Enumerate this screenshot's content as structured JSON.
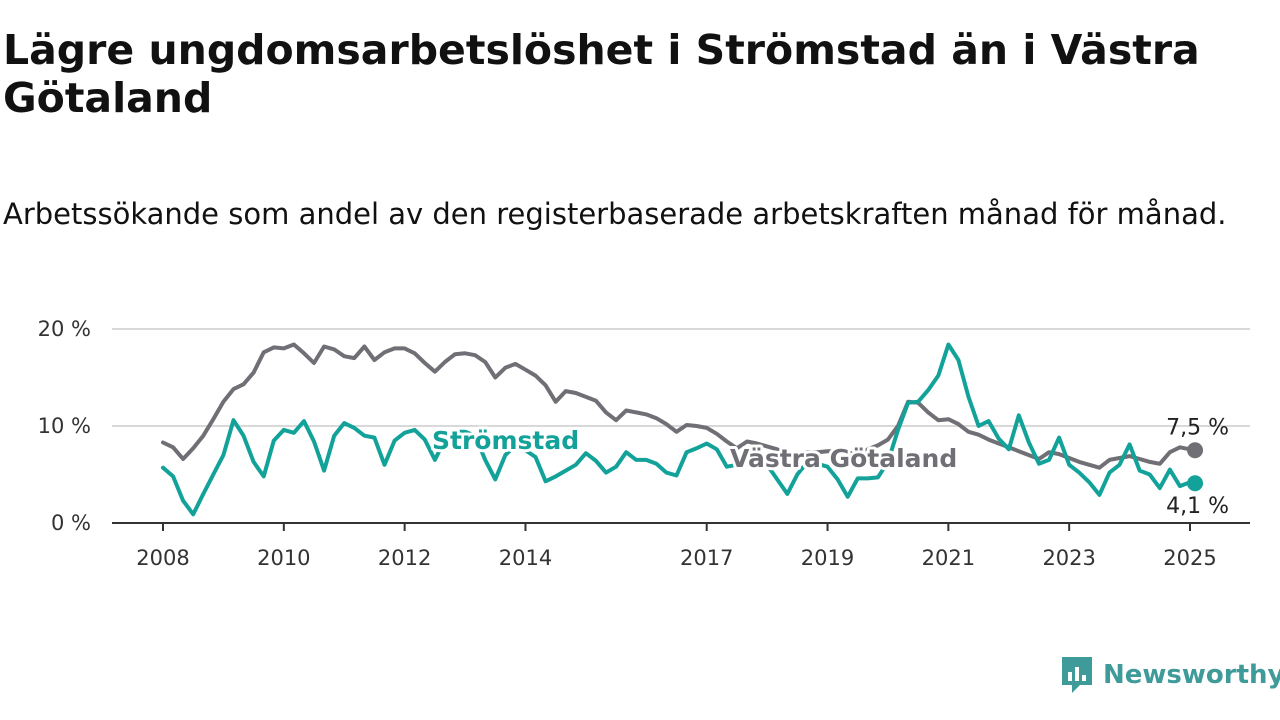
{
  "title": "Lägre ungdomsarbetslöshet i Strömstad än i Västra Götaland",
  "subtitle": "Arbetssökande som andel av den registerbaserade arbetskraften månad för månad.",
  "brand": {
    "name": "Newsworthy",
    "icon": "newsworthy-logo-icon",
    "color": "#3f9a9a"
  },
  "chart_data": {
    "type": "line",
    "title": "Lägre ungdomsarbetslöshet i Strömstad än i Västra Götaland",
    "subtitle": "Arbetssökande som andel av den registerbaserade arbetskraften månad för månad.",
    "xlabel": "",
    "ylabel": "",
    "x_ticks": [
      "2008",
      "2010",
      "2012",
      "2014",
      "2017",
      "2019",
      "2021",
      "2023",
      "2025"
    ],
    "y_ticks": [
      "0 %",
      "10 %",
      "20 %"
    ],
    "ylim": [
      0,
      20
    ],
    "xlim": [
      "2008-01",
      "2025-02"
    ],
    "grid": true,
    "series": [
      {
        "name": "Västra Götaland",
        "color": "#6f6f75",
        "end_label": "7,5 %",
        "points": [
          [
            "2008-01",
            8.3
          ],
          [
            "2008-03",
            7.8
          ],
          [
            "2008-05",
            6.6
          ],
          [
            "2008-07",
            7.7
          ],
          [
            "2008-09",
            9.0
          ],
          [
            "2008-11",
            10.7
          ],
          [
            "2009-01",
            12.5
          ],
          [
            "2009-03",
            13.8
          ],
          [
            "2009-05",
            14.3
          ],
          [
            "2009-07",
            15.5
          ],
          [
            "2009-09",
            17.6
          ],
          [
            "2009-11",
            18.1
          ],
          [
            "2010-01",
            18.0
          ],
          [
            "2010-03",
            18.4
          ],
          [
            "2010-05",
            17.5
          ],
          [
            "2010-07",
            16.5
          ],
          [
            "2010-09",
            18.2
          ],
          [
            "2010-11",
            17.9
          ],
          [
            "2011-01",
            17.2
          ],
          [
            "2011-03",
            17.0
          ],
          [
            "2011-05",
            18.2
          ],
          [
            "2011-07",
            16.8
          ],
          [
            "2011-09",
            17.6
          ],
          [
            "2011-11",
            18.0
          ],
          [
            "2012-01",
            18.0
          ],
          [
            "2012-03",
            17.5
          ],
          [
            "2012-05",
            16.5
          ],
          [
            "2012-07",
            15.6
          ],
          [
            "2012-09",
            16.6
          ],
          [
            "2012-11",
            17.4
          ],
          [
            "2013-01",
            17.5
          ],
          [
            "2013-03",
            17.3
          ],
          [
            "2013-05",
            16.6
          ],
          [
            "2013-07",
            15.0
          ],
          [
            "2013-09",
            16.0
          ],
          [
            "2013-11",
            16.4
          ],
          [
            "2014-01",
            15.8
          ],
          [
            "2014-03",
            15.2
          ],
          [
            "2014-05",
            14.2
          ],
          [
            "2014-07",
            12.5
          ],
          [
            "2014-09",
            13.6
          ],
          [
            "2014-11",
            13.4
          ],
          [
            "2015-01",
            13.0
          ],
          [
            "2015-03",
            12.6
          ],
          [
            "2015-05",
            11.4
          ],
          [
            "2015-07",
            10.6
          ],
          [
            "2015-09",
            11.6
          ],
          [
            "2015-11",
            11.4
          ],
          [
            "2016-01",
            11.2
          ],
          [
            "2016-03",
            10.8
          ],
          [
            "2016-05",
            10.2
          ],
          [
            "2016-07",
            9.4
          ],
          [
            "2016-09",
            10.1
          ],
          [
            "2016-11",
            10.0
          ],
          [
            "2017-01",
            9.8
          ],
          [
            "2017-03",
            9.2
          ],
          [
            "2017-05",
            8.4
          ],
          [
            "2017-07",
            7.7
          ],
          [
            "2017-09",
            8.4
          ],
          [
            "2017-11",
            8.2
          ],
          [
            "2018-01",
            7.9
          ],
          [
            "2018-03",
            7.6
          ],
          [
            "2018-05",
            7.1
          ],
          [
            "2018-07",
            6.4
          ],
          [
            "2018-09",
            7.3
          ],
          [
            "2018-11",
            7.3
          ],
          [
            "2019-01",
            7.4
          ],
          [
            "2019-03",
            7.4
          ],
          [
            "2019-05",
            7.3
          ],
          [
            "2019-07",
            7.0
          ],
          [
            "2019-09",
            7.6
          ],
          [
            "2019-11",
            8.0
          ],
          [
            "2020-01",
            8.6
          ],
          [
            "2020-03",
            10.0
          ],
          [
            "2020-05",
            12.5
          ],
          [
            "2020-07",
            12.4
          ],
          [
            "2020-09",
            11.4
          ],
          [
            "2020-11",
            10.6
          ],
          [
            "2021-01",
            10.7
          ],
          [
            "2021-03",
            10.2
          ],
          [
            "2021-05",
            9.4
          ],
          [
            "2021-07",
            9.1
          ],
          [
            "2021-09",
            8.6
          ],
          [
            "2021-11",
            8.2
          ],
          [
            "2022-01",
            7.8
          ],
          [
            "2022-03",
            7.4
          ],
          [
            "2022-05",
            7.0
          ],
          [
            "2022-07",
            6.6
          ],
          [
            "2022-09",
            7.3
          ],
          [
            "2022-11",
            7.1
          ],
          [
            "2023-01",
            6.7
          ],
          [
            "2023-03",
            6.3
          ],
          [
            "2023-05",
            6.0
          ],
          [
            "2023-07",
            5.7
          ],
          [
            "2023-09",
            6.5
          ],
          [
            "2023-11",
            6.7
          ],
          [
            "2024-01",
            6.9
          ],
          [
            "2024-03",
            6.6
          ],
          [
            "2024-05",
            6.3
          ],
          [
            "2024-07",
            6.1
          ],
          [
            "2024-09",
            7.3
          ],
          [
            "2024-11",
            7.8
          ],
          [
            "2025-01",
            7.6
          ],
          [
            "2025-02",
            7.5
          ]
        ]
      },
      {
        "name": "Strömstad",
        "color": "#12a29a",
        "end_label": "4,1 %",
        "points": [
          [
            "2008-01",
            5.7
          ],
          [
            "2008-03",
            4.8
          ],
          [
            "2008-05",
            2.3
          ],
          [
            "2008-07",
            0.9
          ],
          [
            "2008-09",
            3.0
          ],
          [
            "2008-11",
            5.0
          ],
          [
            "2009-01",
            7.0
          ],
          [
            "2009-03",
            10.6
          ],
          [
            "2009-05",
            9.0
          ],
          [
            "2009-07",
            6.3
          ],
          [
            "2009-09",
            4.8
          ],
          [
            "2009-11",
            8.5
          ],
          [
            "2010-01",
            9.6
          ],
          [
            "2010-03",
            9.3
          ],
          [
            "2010-05",
            10.5
          ],
          [
            "2010-07",
            8.4
          ],
          [
            "2010-09",
            5.4
          ],
          [
            "2010-11",
            9.0
          ],
          [
            "2011-01",
            10.3
          ],
          [
            "2011-03",
            9.8
          ],
          [
            "2011-05",
            9.0
          ],
          [
            "2011-07",
            8.8
          ],
          [
            "2011-09",
            6.0
          ],
          [
            "2011-11",
            8.5
          ],
          [
            "2012-01",
            9.3
          ],
          [
            "2012-03",
            9.6
          ],
          [
            "2012-05",
            8.6
          ],
          [
            "2012-07",
            6.5
          ],
          [
            "2012-09",
            8.6
          ],
          [
            "2012-11",
            9.4
          ],
          [
            "2013-01",
            9.4
          ],
          [
            "2013-03",
            9.0
          ],
          [
            "2013-05",
            6.5
          ],
          [
            "2013-07",
            4.5
          ],
          [
            "2013-09",
            7.0
          ],
          [
            "2013-11",
            8.0
          ],
          [
            "2014-01",
            7.5
          ],
          [
            "2014-03",
            6.8
          ],
          [
            "2014-05",
            4.3
          ],
          [
            "2014-07",
            4.8
          ],
          [
            "2014-09",
            5.4
          ],
          [
            "2014-11",
            6.0
          ],
          [
            "2015-01",
            7.2
          ],
          [
            "2015-03",
            6.4
          ],
          [
            "2015-05",
            5.2
          ],
          [
            "2015-07",
            5.8
          ],
          [
            "2015-09",
            7.3
          ],
          [
            "2015-11",
            6.5
          ],
          [
            "2016-01",
            6.5
          ],
          [
            "2016-03",
            6.1
          ],
          [
            "2016-05",
            5.2
          ],
          [
            "2016-07",
            4.9
          ],
          [
            "2016-09",
            7.3
          ],
          [
            "2016-11",
            7.7
          ],
          [
            "2017-01",
            8.2
          ],
          [
            "2017-03",
            7.6
          ],
          [
            "2017-05",
            5.8
          ],
          [
            "2017-07",
            6.0
          ],
          [
            "2017-09",
            6.9
          ],
          [
            "2017-11",
            6.6
          ],
          [
            "2018-01",
            6.0
          ],
          [
            "2018-03",
            4.5
          ],
          [
            "2018-05",
            3.0
          ],
          [
            "2018-07",
            5.0
          ],
          [
            "2018-09",
            6.3
          ],
          [
            "2018-11",
            6.1
          ],
          [
            "2019-01",
            5.8
          ],
          [
            "2019-03",
            4.5
          ],
          [
            "2019-05",
            2.7
          ],
          [
            "2019-07",
            4.6
          ],
          [
            "2019-09",
            4.6
          ],
          [
            "2019-11",
            4.7
          ],
          [
            "2020-01",
            6.3
          ],
          [
            "2020-03",
            9.6
          ],
          [
            "2020-05",
            12.4
          ],
          [
            "2020-07",
            12.5
          ],
          [
            "2020-09",
            13.7
          ],
          [
            "2020-11",
            15.2
          ],
          [
            "2021-01",
            18.4
          ],
          [
            "2021-03",
            16.8
          ],
          [
            "2021-05",
            13.0
          ],
          [
            "2021-07",
            10.0
          ],
          [
            "2021-09",
            10.5
          ],
          [
            "2021-11",
            8.7
          ],
          [
            "2022-01",
            7.6
          ],
          [
            "2022-03",
            11.1
          ],
          [
            "2022-05",
            8.3
          ],
          [
            "2022-07",
            6.1
          ],
          [
            "2022-09",
            6.5
          ],
          [
            "2022-11",
            8.8
          ],
          [
            "2023-01",
            6.0
          ],
          [
            "2023-03",
            5.2
          ],
          [
            "2023-05",
            4.2
          ],
          [
            "2023-07",
            2.9
          ],
          [
            "2023-09",
            5.2
          ],
          [
            "2023-11",
            6.0
          ],
          [
            "2024-01",
            8.1
          ],
          [
            "2024-03",
            5.4
          ],
          [
            "2024-05",
            5.0
          ],
          [
            "2024-07",
            3.6
          ],
          [
            "2024-09",
            5.5
          ],
          [
            "2024-11",
            3.8
          ],
          [
            "2025-01",
            4.2
          ],
          [
            "2025-02",
            4.1
          ]
        ]
      }
    ]
  }
}
